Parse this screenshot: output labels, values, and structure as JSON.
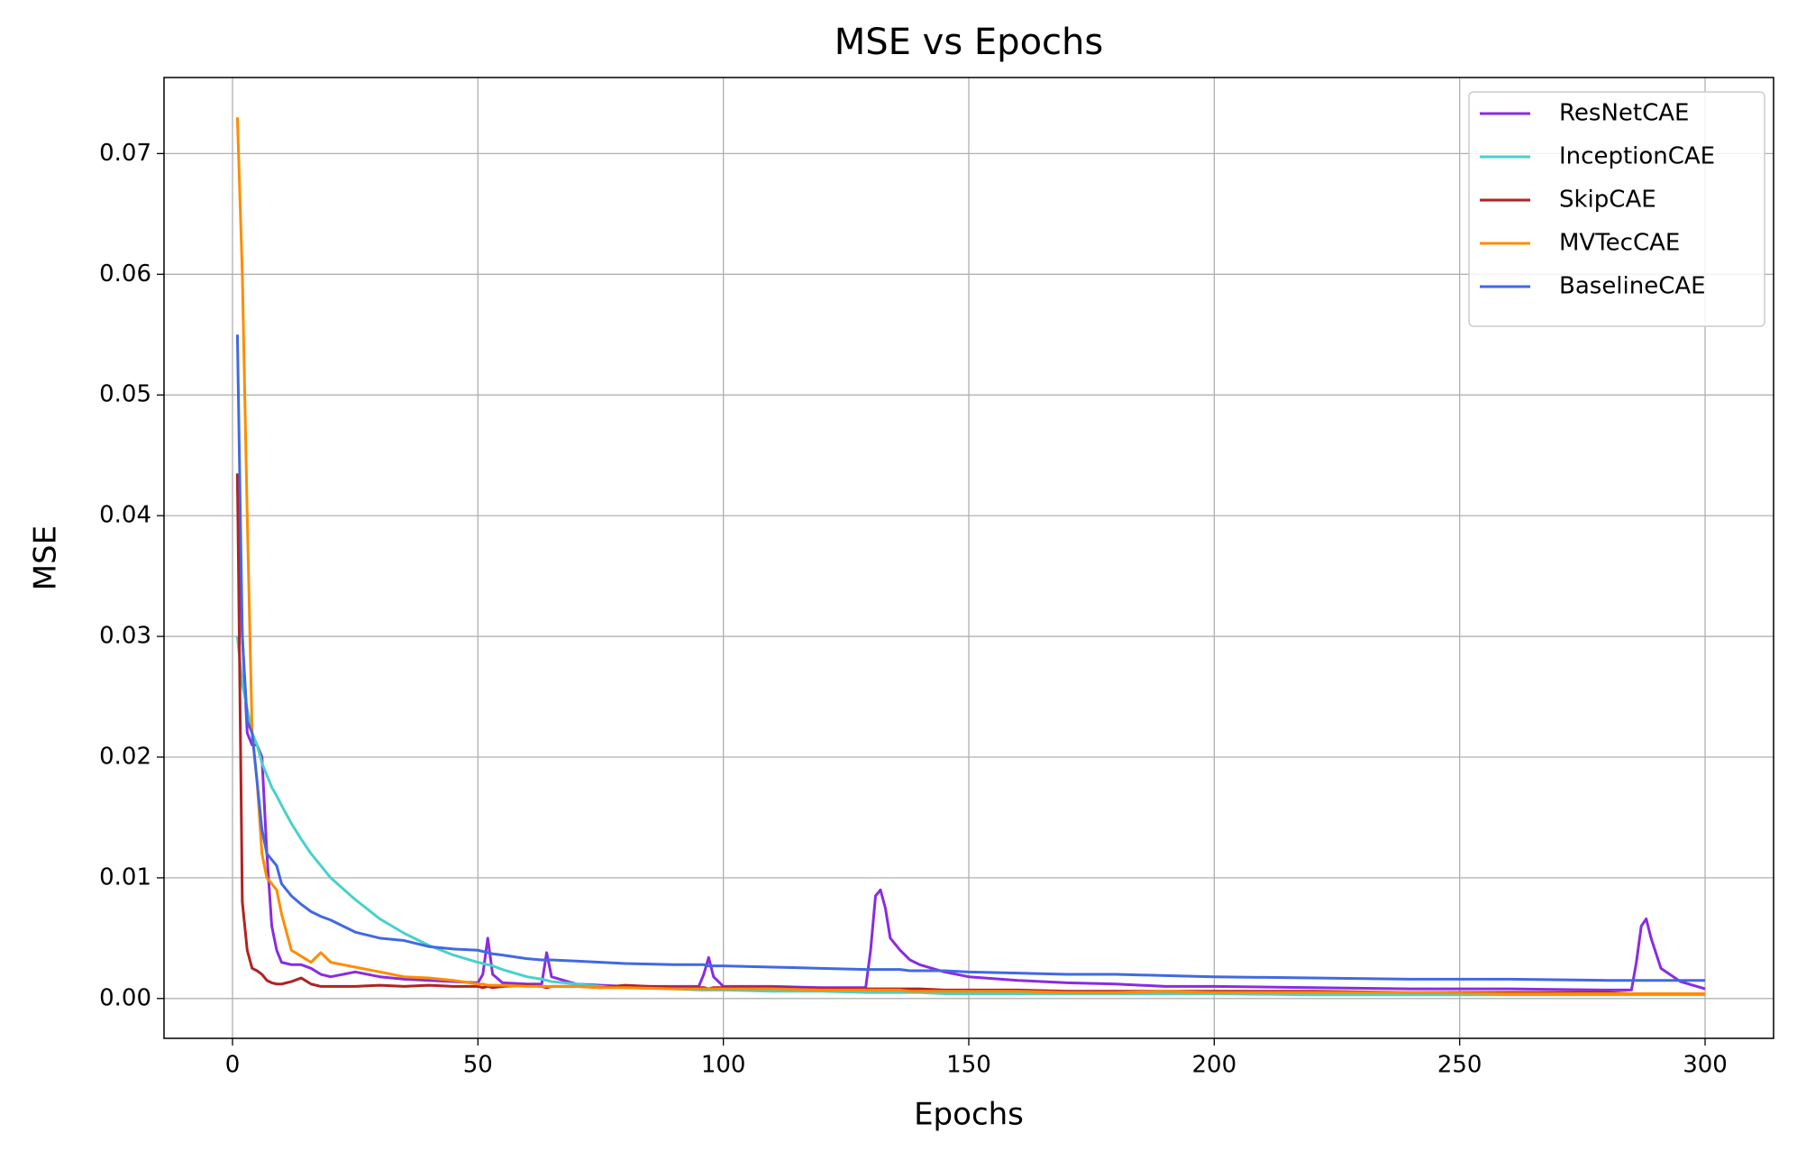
{
  "chart_data": {
    "type": "line",
    "title": "MSE vs Epochs",
    "x_label": "Epochs",
    "y_label": "MSE",
    "x": [
      1,
      2,
      3,
      4,
      5,
      6,
      7,
      8,
      9,
      10,
      12,
      14,
      16,
      18,
      20,
      25,
      30,
      35,
      40,
      45,
      50,
      51,
      52,
      53,
      55,
      60,
      63,
      64,
      65,
      70,
      75,
      80,
      90,
      95,
      96,
      97,
      98,
      100,
      110,
      120,
      129,
      130,
      131,
      132,
      133,
      134,
      136,
      138,
      140,
      145,
      150,
      160,
      170,
      180,
      190,
      200,
      220,
      240,
      260,
      280,
      285,
      286,
      287,
      288,
      289,
      291,
      295,
      300
    ],
    "series": [
      {
        "name": "ResNetCAE",
        "color": "#8a2be2",
        "values": [
          0.043,
          0.03,
          0.022,
          0.021,
          0.021,
          0.02,
          0.012,
          0.006,
          0.004,
          0.003,
          0.0028,
          0.0028,
          0.0025,
          0.002,
          0.0018,
          0.0022,
          0.0018,
          0.0016,
          0.0015,
          0.0014,
          0.0013,
          0.002,
          0.005,
          0.002,
          0.0013,
          0.0012,
          0.0012,
          0.0038,
          0.0018,
          0.0012,
          0.0011,
          0.001,
          0.001,
          0.001,
          0.002,
          0.0034,
          0.0018,
          0.001,
          0.001,
          0.0009,
          0.0009,
          0.004,
          0.0085,
          0.009,
          0.0075,
          0.005,
          0.004,
          0.0032,
          0.0028,
          0.0022,
          0.0018,
          0.0015,
          0.0013,
          0.0012,
          0.001,
          0.001,
          0.0009,
          0.0008,
          0.0008,
          0.0007,
          0.0007,
          0.003,
          0.006,
          0.0066,
          0.005,
          0.0025,
          0.0014,
          0.0008
        ]
      },
      {
        "name": "InceptionCAE",
        "color": "#48d1cc",
        "values": [
          0.03,
          0.026,
          0.024,
          0.022,
          0.021,
          0.0195,
          0.0185,
          0.0175,
          0.0168,
          0.016,
          0.0145,
          0.0132,
          0.012,
          0.011,
          0.01,
          0.0082,
          0.0066,
          0.0054,
          0.0044,
          0.0036,
          0.003,
          0.0029,
          0.0028,
          0.0027,
          0.0024,
          0.0018,
          0.0016,
          0.0015,
          0.0014,
          0.0012,
          0.001,
          0.0009,
          0.0008,
          0.0007,
          0.0007,
          0.0007,
          0.0007,
          0.0007,
          0.0006,
          0.0006,
          0.0005,
          0.0005,
          0.0005,
          0.0005,
          0.0005,
          0.0005,
          0.0005,
          0.0005,
          0.0005,
          0.0004,
          0.0004,
          0.0004,
          0.0004,
          0.0004,
          0.0004,
          0.0004,
          0.0003,
          0.0003,
          0.0003,
          0.0003,
          0.0003,
          0.0003,
          0.0003,
          0.0003,
          0.0003,
          0.0003,
          0.0003,
          0.0003
        ]
      },
      {
        "name": "SkipCAE",
        "color": "#b22222",
        "values": [
          0.0435,
          0.008,
          0.004,
          0.0025,
          0.0023,
          0.002,
          0.0015,
          0.0013,
          0.0012,
          0.0012,
          0.0014,
          0.0017,
          0.0012,
          0.001,
          0.001,
          0.001,
          0.0011,
          0.001,
          0.0011,
          0.001,
          0.001,
          0.0009,
          0.001,
          0.0009,
          0.001,
          0.0011,
          0.001,
          0.0009,
          0.001,
          0.001,
          0.0009,
          0.0011,
          0.0009,
          0.0009,
          0.0009,
          0.0008,
          0.0009,
          0.0009,
          0.0009,
          0.0008,
          0.0008,
          0.0008,
          0.0008,
          0.0008,
          0.0008,
          0.0008,
          0.0008,
          0.0008,
          0.0008,
          0.0007,
          0.0007,
          0.0007,
          0.0006,
          0.0006,
          0.0006,
          0.0006,
          0.0006,
          0.0005,
          0.0005,
          0.0005,
          0.0004,
          0.0004,
          0.0004,
          0.0004,
          0.0004,
          0.0004,
          0.0004,
          0.0004
        ]
      },
      {
        "name": "MVTecCAE",
        "color": "#ff8c00",
        "values": [
          0.073,
          0.06,
          0.04,
          0.022,
          0.018,
          0.012,
          0.01,
          0.0095,
          0.009,
          0.007,
          0.004,
          0.0035,
          0.003,
          0.0038,
          0.003,
          0.0026,
          0.0022,
          0.0018,
          0.0017,
          0.0015,
          0.0012,
          0.0012,
          0.0011,
          0.0011,
          0.0011,
          0.001,
          0.001,
          0.001,
          0.001,
          0.001,
          0.0009,
          0.0009,
          0.0008,
          0.0008,
          0.0008,
          0.0008,
          0.0008,
          0.0008,
          0.0008,
          0.0007,
          0.0007,
          0.0007,
          0.0007,
          0.0007,
          0.0007,
          0.0007,
          0.0007,
          0.0006,
          0.0006,
          0.0006,
          0.0006,
          0.0006,
          0.0005,
          0.0005,
          0.0006,
          0.0005,
          0.0005,
          0.0005,
          0.0004,
          0.0004,
          0.0004,
          0.0004,
          0.0004,
          0.0004,
          0.0004,
          0.0004,
          0.0004,
          0.0004
        ]
      },
      {
        "name": "BaselineCAE",
        "color": "#4169e1",
        "values": [
          0.055,
          0.03,
          0.023,
          0.022,
          0.018,
          0.014,
          0.012,
          0.0115,
          0.011,
          0.0095,
          0.0085,
          0.0078,
          0.0072,
          0.0068,
          0.0065,
          0.0055,
          0.005,
          0.0048,
          0.0043,
          0.0041,
          0.004,
          0.0039,
          0.0038,
          0.0037,
          0.0036,
          0.0033,
          0.0032,
          0.0032,
          0.0032,
          0.0031,
          0.003,
          0.0029,
          0.0028,
          0.0028,
          0.0028,
          0.0027,
          0.0027,
          0.0027,
          0.0026,
          0.0025,
          0.0024,
          0.0024,
          0.0024,
          0.0024,
          0.0024,
          0.0024,
          0.0024,
          0.0023,
          0.0023,
          0.0023,
          0.0022,
          0.0021,
          0.002,
          0.002,
          0.0019,
          0.0018,
          0.0017,
          0.0016,
          0.0016,
          0.0015,
          0.0015,
          0.0015,
          0.0015,
          0.0015,
          0.0015,
          0.0015,
          0.0015,
          0.0015
        ]
      }
    ],
    "xlim": [
      -13.95,
      313.95
    ],
    "ylim": [
      -0.0033,
      0.0763
    ],
    "xticks": [
      0,
      50,
      100,
      150,
      200,
      250,
      300
    ],
    "yticks": [
      {
        "value": 0,
        "label": "0.00"
      },
      0.01,
      0.02,
      0.03,
      0.04,
      0.05,
      0.06,
      0.07
    ],
    "grid": true,
    "legend": "upper-right"
  }
}
